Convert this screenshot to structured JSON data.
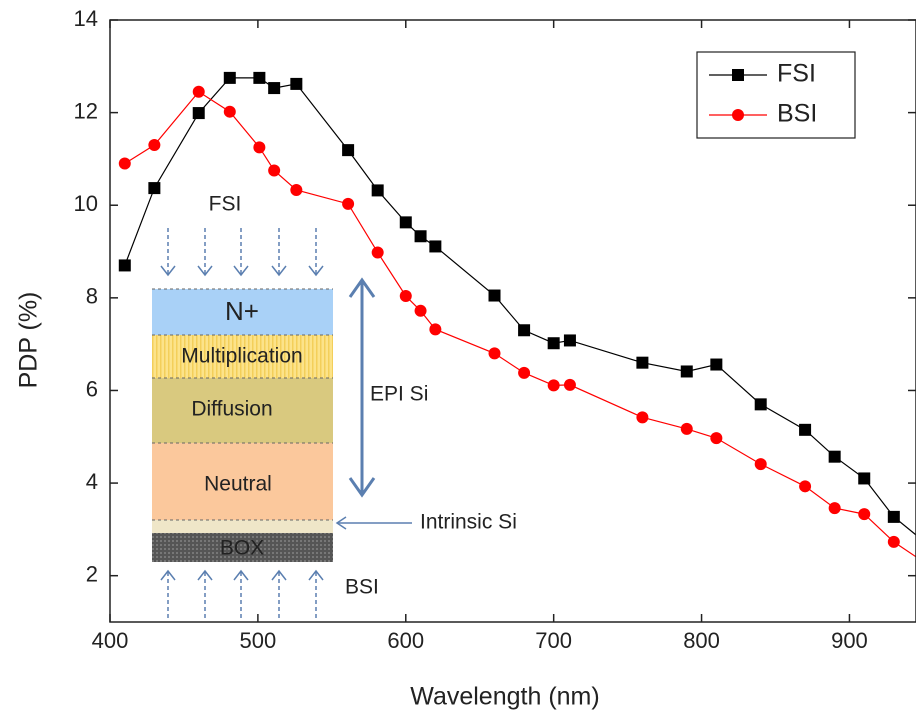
{
  "chart_data": {
    "type": "line",
    "xlabel": "Wavelength (nm)",
    "ylabel": "PDP (%)",
    "xlim": [
      400,
      945
    ],
    "ylim": [
      1,
      14
    ],
    "xticks": [
      400,
      500,
      600,
      700,
      800,
      900
    ],
    "yticks": [
      2,
      4,
      6,
      8,
      10,
      12,
      14
    ],
    "grid": false,
    "legend": "upper right",
    "series": [
      {
        "name": "FSI",
        "color": "#000000",
        "marker": "square",
        "x": [
          410,
          430,
          460,
          481,
          501,
          511,
          526,
          561,
          581,
          600,
          610,
          620,
          660,
          680,
          700,
          711,
          760,
          790,
          810,
          840,
          870,
          890,
          910,
          930,
          950
        ],
        "values": [
          8.7,
          10.37,
          11.99,
          12.75,
          12.75,
          12.53,
          12.62,
          11.19,
          10.32,
          9.63,
          9.33,
          9.11,
          8.05,
          7.3,
          7.02,
          7.08,
          6.6,
          6.41,
          6.56,
          5.7,
          5.15,
          4.57,
          4.1,
          3.27,
          2.75
        ]
      },
      {
        "name": "BSI",
        "color": "#ff0000",
        "marker": "circle",
        "x": [
          410,
          430,
          460,
          481,
          501,
          511,
          526,
          561,
          581,
          600,
          610,
          620,
          660,
          680,
          700,
          711,
          760,
          790,
          810,
          840,
          870,
          890,
          910,
          930,
          950
        ],
        "values": [
          10.9,
          11.3,
          12.45,
          12.02,
          11.25,
          10.75,
          10.33,
          10.03,
          8.98,
          8.04,
          7.72,
          7.32,
          6.8,
          6.38,
          6.11,
          6.12,
          5.42,
          5.17,
          4.97,
          4.41,
          3.93,
          3.46,
          3.33,
          2.73,
          2.3
        ]
      }
    ],
    "inset": {
      "top_label": "FSI",
      "layers": [
        "N+",
        "Multiplication",
        "Diffusion",
        "Neutral",
        "BOX"
      ],
      "epi_label": "EPI Si",
      "intrinsic_label": "Intrinsic Si",
      "bottom_label": "BSI"
    }
  }
}
